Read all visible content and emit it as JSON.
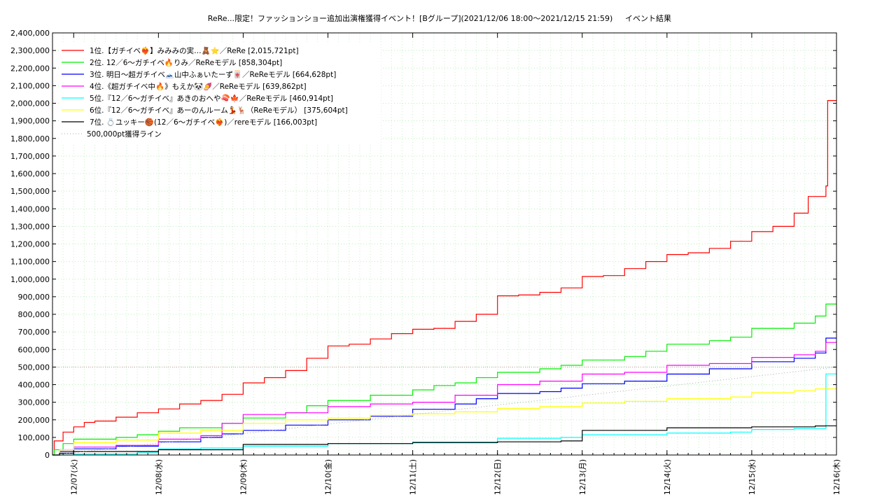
{
  "chart_data": {
    "type": "line",
    "title": "ReRe...限定！ファッションショー追加出演権獲得イベント！[Bグループ](2021/12/06 18:00〜2021/12/15 21:59)",
    "title_right": "イベント結果",
    "xlabel": "",
    "ylabel": "",
    "x_range": [
      "2021/12/06 18:00",
      "2021/12/16 00:00"
    ],
    "ylim": [
      0,
      2400000
    ],
    "y_ticks": [
      "0",
      "100,000",
      "200,000",
      "300,000",
      "400,000",
      "500,000",
      "600,000",
      "700,000",
      "800,000",
      "900,000",
      "1,000,000",
      "1,100,000",
      "1,200,000",
      "1,300,000",
      "1,400,000",
      "1,500,000",
      "1,600,000",
      "1,700,000",
      "1,800,000",
      "1,900,000",
      "2,000,000",
      "2,100,000",
      "2,200,000",
      "2,300,000",
      "2,400,000"
    ],
    "x_ticks": [
      {
        "date": "2021/12/07",
        "label": "12/07(火)"
      },
      {
        "date": "2021/12/08",
        "label": "12/08(水)"
      },
      {
        "date": "2021/12/09",
        "label": "12/09(木)"
      },
      {
        "date": "2021/12/10",
        "label": "12/10(金)"
      },
      {
        "date": "2021/12/11",
        "label": "12/11(土)"
      },
      {
        "date": "2021/12/12",
        "label": "12/12(日)"
      },
      {
        "date": "2021/12/13",
        "label": "12/13(月)"
      },
      {
        "date": "2021/12/14",
        "label": "12/14(火)"
      },
      {
        "date": "2021/12/15",
        "label": "12/15(水)"
      },
      {
        "date": "2021/12/16",
        "label": "12/16(木)"
      }
    ],
    "grid": true,
    "legend_position": "top-left",
    "series": [
      {
        "name": "1位.【ガチイベ❤️‍🔥】みみみの実…🧸⭐️／ReRe [2,015,721pt]",
        "color": "#ff0000",
        "step": true,
        "points": [
          [
            "2021/12/06 18:00",
            0
          ],
          [
            "2021/12/06 18:30",
            80000
          ],
          [
            "2021/12/06 21:00",
            130000
          ],
          [
            "2021/12/07 00:00",
            160000
          ],
          [
            "2021/12/07 03:00",
            185000
          ],
          [
            "2021/12/07 06:00",
            193000
          ],
          [
            "2021/12/07 12:00",
            215000
          ],
          [
            "2021/12/07 18:00",
            240000
          ],
          [
            "2021/12/08 00:00",
            262000
          ],
          [
            "2021/12/08 06:00",
            290000
          ],
          [
            "2021/12/08 12:00",
            310000
          ],
          [
            "2021/12/08 18:00",
            345000
          ],
          [
            "2021/12/09 00:00",
            410000
          ],
          [
            "2021/12/09 06:00",
            440000
          ],
          [
            "2021/12/09 12:00",
            480000
          ],
          [
            "2021/12/09 18:00",
            550000
          ],
          [
            "2021/12/10 00:00",
            620000
          ],
          [
            "2021/12/10 06:00",
            630000
          ],
          [
            "2021/12/10 12:00",
            660000
          ],
          [
            "2021/12/10 18:00",
            690000
          ],
          [
            "2021/12/11 00:00",
            715000
          ],
          [
            "2021/12/11 06:00",
            720000
          ],
          [
            "2021/12/11 12:00",
            760000
          ],
          [
            "2021/12/11 18:00",
            800000
          ],
          [
            "2021/12/12 00:00",
            905000
          ],
          [
            "2021/12/12 06:00",
            910000
          ],
          [
            "2021/12/12 12:00",
            925000
          ],
          [
            "2021/12/12 18:00",
            950000
          ],
          [
            "2021/12/13 00:00",
            1015000
          ],
          [
            "2021/12/13 06:00",
            1020000
          ],
          [
            "2021/12/13 12:00",
            1060000
          ],
          [
            "2021/12/13 18:00",
            1100000
          ],
          [
            "2021/12/14 00:00",
            1140000
          ],
          [
            "2021/12/14 06:00",
            1150000
          ],
          [
            "2021/12/14 12:00",
            1175000
          ],
          [
            "2021/12/14 18:00",
            1215000
          ],
          [
            "2021/12/15 00:00",
            1270000
          ],
          [
            "2021/12/15 06:00",
            1300000
          ],
          [
            "2021/12/15 12:00",
            1375000
          ],
          [
            "2021/12/15 16:00",
            1470000
          ],
          [
            "2021/12/15 21:00",
            1530000
          ],
          [
            "2021/12/15 21:30",
            2015721
          ],
          [
            "2021/12/16 00:00",
            2015721
          ]
        ]
      },
      {
        "name": "2位. 12／6〜ガチイベ🔥りみ／ReReモデル [858,304pt]",
        "color": "#00ee00",
        "step": true,
        "points": [
          [
            "2021/12/06 18:00",
            0
          ],
          [
            "2021/12/06 18:30",
            30000
          ],
          [
            "2021/12/06 21:00",
            65000
          ],
          [
            "2021/12/07 00:00",
            90000
          ],
          [
            "2021/12/07 12:00",
            100000
          ],
          [
            "2021/12/07 18:00",
            115000
          ],
          [
            "2021/12/08 00:00",
            135000
          ],
          [
            "2021/12/08 06:00",
            155000
          ],
          [
            "2021/12/08 18:00",
            180000
          ],
          [
            "2021/12/09 00:00",
            210000
          ],
          [
            "2021/12/09 12:00",
            240000
          ],
          [
            "2021/12/09 18:00",
            280000
          ],
          [
            "2021/12/10 00:00",
            310000
          ],
          [
            "2021/12/10 12:00",
            340000
          ],
          [
            "2021/12/11 00:00",
            370000
          ],
          [
            "2021/12/11 06:00",
            395000
          ],
          [
            "2021/12/11 12:00",
            410000
          ],
          [
            "2021/12/11 18:00",
            440000
          ],
          [
            "2021/12/12 00:00",
            470000
          ],
          [
            "2021/12/12 12:00",
            490000
          ],
          [
            "2021/12/12 18:00",
            510000
          ],
          [
            "2021/12/13 00:00",
            540000
          ],
          [
            "2021/12/13 12:00",
            560000
          ],
          [
            "2021/12/13 18:00",
            590000
          ],
          [
            "2021/12/14 00:00",
            630000
          ],
          [
            "2021/12/14 12:00",
            650000
          ],
          [
            "2021/12/14 18:00",
            670000
          ],
          [
            "2021/12/15 00:00",
            720000
          ],
          [
            "2021/12/15 12:00",
            750000
          ],
          [
            "2021/12/15 18:00",
            790000
          ],
          [
            "2021/12/15 21:00",
            858304
          ],
          [
            "2021/12/16 00:00",
            858304
          ]
        ]
      },
      {
        "name": "3位. 明日〜超ガチイベ🗻山中ふぁいたーず🀄／ReReモデル [664,628pt]",
        "color": "#0000ff",
        "step": true,
        "points": [
          [
            "2021/12/06 18:00",
            0
          ],
          [
            "2021/12/06 20:00",
            20000
          ],
          [
            "2021/12/07 00:00",
            35000
          ],
          [
            "2021/12/07 12:00",
            50000
          ],
          [
            "2021/12/08 00:00",
            75000
          ],
          [
            "2021/12/08 12:00",
            100000
          ],
          [
            "2021/12/08 18:00",
            120000
          ],
          [
            "2021/12/09 00:00",
            140000
          ],
          [
            "2021/12/09 12:00",
            170000
          ],
          [
            "2021/12/10 00:00",
            200000
          ],
          [
            "2021/12/10 12:00",
            220000
          ],
          [
            "2021/12/11 00:00",
            260000
          ],
          [
            "2021/12/11 12:00",
            290000
          ],
          [
            "2021/12/11 18:00",
            320000
          ],
          [
            "2021/12/12 00:00",
            350000
          ],
          [
            "2021/12/12 12:00",
            360000
          ],
          [
            "2021/12/12 18:00",
            380000
          ],
          [
            "2021/12/13 00:00",
            405000
          ],
          [
            "2021/12/13 12:00",
            420000
          ],
          [
            "2021/12/14 00:00",
            460000
          ],
          [
            "2021/12/14 12:00",
            490000
          ],
          [
            "2021/12/15 00:00",
            530000
          ],
          [
            "2021/12/15 12:00",
            550000
          ],
          [
            "2021/12/15 18:00",
            580000
          ],
          [
            "2021/12/15 21:00",
            664628
          ],
          [
            "2021/12/16 00:00",
            664628
          ]
        ]
      },
      {
        "name": "4位.《超ガチイベ中🔥》もえか🐼🍠／ReReモデル [639,862pt]",
        "color": "#ff00ff",
        "step": true,
        "points": [
          [
            "2021/12/06 18:00",
            0
          ],
          [
            "2021/12/06 20:00",
            30000
          ],
          [
            "2021/12/07 00:00",
            45000
          ],
          [
            "2021/12/07 12:00",
            55000
          ],
          [
            "2021/12/08 00:00",
            90000
          ],
          [
            "2021/12/08 12:00",
            110000
          ],
          [
            "2021/12/08 18:00",
            180000
          ],
          [
            "2021/12/09 00:00",
            230000
          ],
          [
            "2021/12/09 12:00",
            240000
          ],
          [
            "2021/12/10 00:00",
            275000
          ],
          [
            "2021/12/10 12:00",
            290000
          ],
          [
            "2021/12/11 00:00",
            300000
          ],
          [
            "2021/12/11 12:00",
            340000
          ],
          [
            "2021/12/12 00:00",
            400000
          ],
          [
            "2021/12/12 12:00",
            420000
          ],
          [
            "2021/12/13 00:00",
            460000
          ],
          [
            "2021/12/13 12:00",
            470000
          ],
          [
            "2021/12/14 00:00",
            510000
          ],
          [
            "2021/12/14 12:00",
            520000
          ],
          [
            "2021/12/15 00:00",
            555000
          ],
          [
            "2021/12/15 12:00",
            570000
          ],
          [
            "2021/12/15 18:00",
            590000
          ],
          [
            "2021/12/15 21:00",
            639862
          ],
          [
            "2021/12/16 00:00",
            639862
          ]
        ]
      },
      {
        "name": "5位.『12／6〜ガチイベ』あきのおへや🍣🍁／ReReモデル [460,914pt]",
        "color": "#00ffff",
        "step": true,
        "points": [
          [
            "2021/12/06 18:00",
            0
          ],
          [
            "2021/12/07 00:00",
            5000
          ],
          [
            "2021/12/07 18:00",
            15000
          ],
          [
            "2021/12/08 00:00",
            35000
          ],
          [
            "2021/12/08 12:00",
            40000
          ],
          [
            "2021/12/09 00:00",
            50000
          ],
          [
            "2021/12/10 00:00",
            65000
          ],
          [
            "2021/12/11 00:00",
            75000
          ],
          [
            "2021/12/12 00:00",
            95000
          ],
          [
            "2021/12/12 18:00",
            100000
          ],
          [
            "2021/12/13 00:00",
            115000
          ],
          [
            "2021/12/14 00:00",
            125000
          ],
          [
            "2021/12/14 18:00",
            130000
          ],
          [
            "2021/12/15 00:00",
            145000
          ],
          [
            "2021/12/15 12:00",
            150000
          ],
          [
            "2021/12/15 21:00",
            460914
          ],
          [
            "2021/12/16 00:00",
            460914
          ]
        ]
      },
      {
        "name": "6位.『12／6〜ガチイベ』あーのんルーム💃🦌（ReReモデル） [375,604pt]",
        "color": "#ffff00",
        "step": true,
        "points": [
          [
            "2021/12/06 18:00",
            0
          ],
          [
            "2021/12/06 20:00",
            30000
          ],
          [
            "2021/12/07 00:00",
            70000
          ],
          [
            "2021/12/07 12:00",
            85000
          ],
          [
            "2021/12/08 00:00",
            125000
          ],
          [
            "2021/12/08 12:00",
            140000
          ],
          [
            "2021/12/09 00:00",
            180000
          ],
          [
            "2021/12/09 12:00",
            200000
          ],
          [
            "2021/12/10 00:00",
            210000
          ],
          [
            "2021/12/10 12:00",
            225000
          ],
          [
            "2021/12/11 00:00",
            235000
          ],
          [
            "2021/12/11 12:00",
            245000
          ],
          [
            "2021/12/12 00:00",
            265000
          ],
          [
            "2021/12/12 12:00",
            275000
          ],
          [
            "2021/12/13 00:00",
            295000
          ],
          [
            "2021/12/13 12:00",
            305000
          ],
          [
            "2021/12/14 00:00",
            320000
          ],
          [
            "2021/12/14 18:00",
            330000
          ],
          [
            "2021/12/15 00:00",
            355000
          ],
          [
            "2021/12/15 12:00",
            365000
          ],
          [
            "2021/12/15 18:00",
            375604
          ],
          [
            "2021/12/16 00:00",
            375604
          ]
        ]
      },
      {
        "name": "7位. 💍ユッキー🏀(12／6〜ガチイベ❤️‍🔥)／rereモデル [166,003pt]",
        "color": "#000000",
        "step": true,
        "points": [
          [
            "2021/12/06 18:00",
            0
          ],
          [
            "2021/12/06 20:00",
            10000
          ],
          [
            "2021/12/07 00:00",
            20000
          ],
          [
            "2021/12/08 00:00",
            30000
          ],
          [
            "2021/12/09 00:00",
            60000
          ],
          [
            "2021/12/10 00:00",
            65000
          ],
          [
            "2021/12/11 00:00",
            70000
          ],
          [
            "2021/12/12 00:00",
            75000
          ],
          [
            "2021/12/12 18:00",
            80000
          ],
          [
            "2021/12/13 00:00",
            140000
          ],
          [
            "2021/12/14 00:00",
            155000
          ],
          [
            "2021/12/15 00:00",
            160000
          ],
          [
            "2021/12/15 18:00",
            165000
          ],
          [
            "2021/12/15 21:00",
            166003
          ],
          [
            "2021/12/16 00:00",
            166003
          ]
        ]
      },
      {
        "name": "500,000pt獲得ライン",
        "color": "#aaaaaa",
        "dotted": true,
        "step": false,
        "points": [
          [
            "2021/12/06 18:00",
            0
          ],
          [
            "2021/12/16 00:00",
            500000
          ]
        ]
      }
    ],
    "reference_lines": [
      {
        "y": 500000,
        "color": "#c8a0a0",
        "dotted": true
      }
    ]
  }
}
